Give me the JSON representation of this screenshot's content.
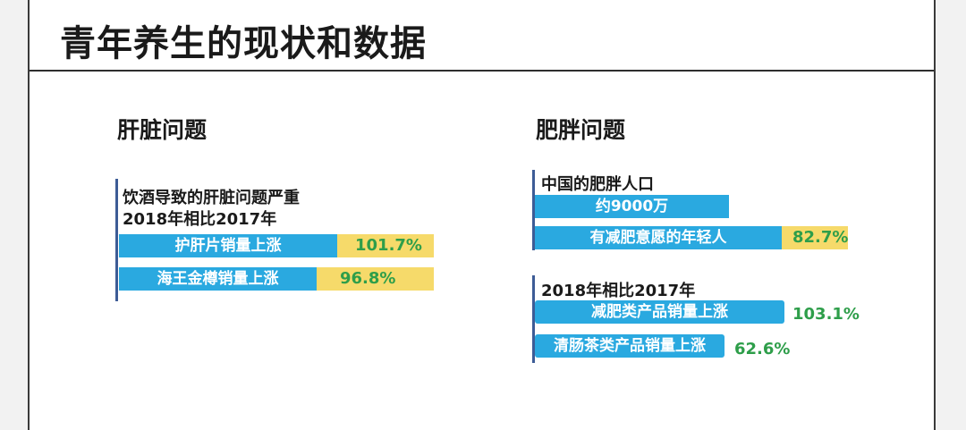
{
  "title": "青年养生的现状和数据",
  "liver": {
    "heading": "肝脏问题",
    "line1": "饮酒导致的肝脏问题严重",
    "line2": "2018年相比2017年",
    "bars": [
      {
        "label": "护肝片销量上涨",
        "value": "101.7%"
      },
      {
        "label": "海王金樽销量上涨",
        "value": "96.8%"
      }
    ]
  },
  "obesity": {
    "heading": "肥胖问题",
    "population_label": "中国的肥胖人口",
    "population_value": "约9000万",
    "young_label": "有减肥意愿的年轻人",
    "young_value": "82.7%",
    "compare_label": "2018年相比2017年",
    "bars": [
      {
        "label": "减肥类产品销量上涨",
        "value": "103.1%"
      },
      {
        "label": "清肠茶类产品销量上涨",
        "value": "62.6%"
      }
    ]
  },
  "colors": {
    "bar_blue": "#2aa9e0",
    "pct_yellow": "#f6da6a",
    "pct_green": "#2e9e4a",
    "divider_blue": "#3d5c96"
  }
}
